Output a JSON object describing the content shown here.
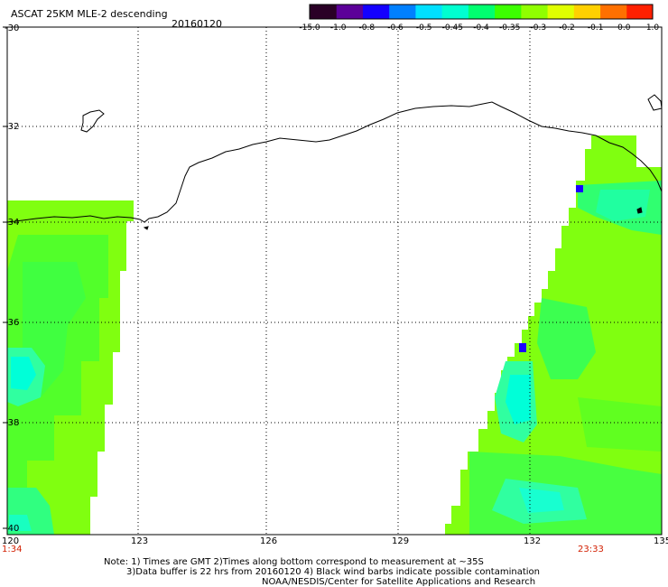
{
  "header": {
    "title": "ASCAT 25KM MLE-2 descending",
    "date": "20160120"
  },
  "colorbar": {
    "labels": [
      "-15.0",
      "-1.0",
      "-0.8",
      "-0.6",
      "-0.5",
      "-0.45",
      "-0.4",
      "-0.35",
      "-0.3",
      "-0.2",
      "-0.1",
      "0.0",
      "1.0"
    ],
    "colors": [
      "#2a0026",
      "#5c0099",
      "#1400ff",
      "#0080ff",
      "#00e0ff",
      "#00ffd0",
      "#00ff70",
      "#3cff00",
      "#90ff00",
      "#e0ff00",
      "#ffd000",
      "#ff7000",
      "#ff2000"
    ]
  },
  "axes": {
    "lat_labels": [
      "-30",
      "-32",
      "-34",
      "-36",
      "-38",
      "-40"
    ],
    "lon_labels": [
      "120",
      "123",
      "126",
      "129",
      "132",
      "135"
    ]
  },
  "time_labels": {
    "left": "1:34",
    "right": "23:33"
  },
  "footer": {
    "line1": "Note: 1) Times are GMT 2)Times along bottom correspond to measurement at ~35S",
    "line2": "3)Data buffer is 22 hrs from 20160120 4) Black wind barbs indicate possible contamination",
    "line3": "NOAA/NESDIS/Center for Satellite Applications and Research"
  },
  "palette": {
    "green_bright": "#7cff00",
    "green": "#3cff3c",
    "cyan": "#00ffd8",
    "blue": "#1a00ff"
  }
}
